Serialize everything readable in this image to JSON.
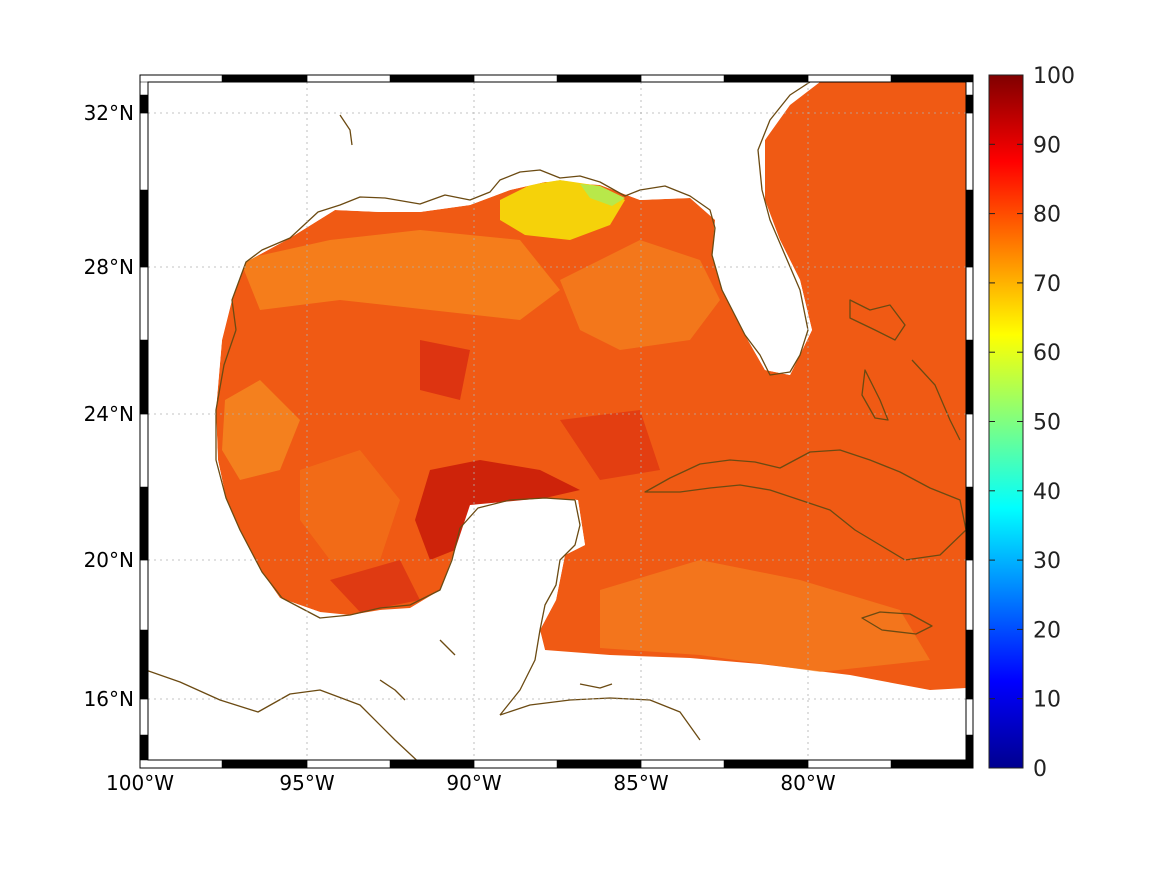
{
  "map": {
    "lon_ticks": [
      "100°W",
      "95°W",
      "90°W",
      "85°W",
      "80°W"
    ],
    "lat_ticks": [
      "32°N",
      "28°N",
      "24°N",
      "20°N",
      "16°N"
    ],
    "frame_style": "black-white alternating border",
    "grid": "on (dotted)",
    "colormap": "jet",
    "coastline_color": "#6b4a12"
  },
  "colorbar": {
    "ticks": [
      "100",
      "90",
      "80",
      "70",
      "60",
      "50",
      "40",
      "30",
      "20",
      "10",
      "0"
    ],
    "min": 0,
    "max": 100,
    "position": "right"
  }
}
